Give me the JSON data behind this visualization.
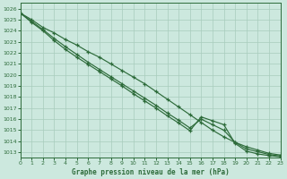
{
  "title": "Graphe pression niveau de la mer (hPa)",
  "bg_color": "#cce8de",
  "grid_color": "#a8ccbc",
  "line_color": "#2d6b3a",
  "xlim": [
    0,
    23
  ],
  "ylim": [
    1012.5,
    1026.5
  ],
  "yticks": [
    1013,
    1014,
    1015,
    1016,
    1017,
    1018,
    1019,
    1020,
    1021,
    1022,
    1023,
    1024,
    1025,
    1026
  ],
  "xticks": [
    0,
    1,
    2,
    3,
    4,
    5,
    6,
    7,
    8,
    9,
    10,
    11,
    12,
    13,
    14,
    15,
    16,
    17,
    18,
    19,
    20,
    21,
    22,
    23
  ],
  "line1_y": [
    1025.6,
    1025.0,
    1024.3,
    1023.8,
    1023.2,
    1022.7,
    1022.1,
    1021.6,
    1021.0,
    1020.4,
    1019.8,
    1019.2,
    1018.5,
    1017.8,
    1017.1,
    1016.4,
    1015.7,
    1015.0,
    1014.4,
    1013.9,
    1013.5,
    1013.2,
    1012.9,
    1012.75
  ],
  "line2_y": [
    1025.6,
    1024.85,
    1024.1,
    1023.3,
    1022.55,
    1021.85,
    1021.15,
    1020.5,
    1019.85,
    1019.2,
    1018.55,
    1017.9,
    1017.25,
    1016.55,
    1015.9,
    1015.2,
    1016.0,
    1015.5,
    1015.0,
    1013.9,
    1013.3,
    1013.05,
    1012.8,
    1012.65
  ],
  "line3_y": [
    1025.6,
    1024.75,
    1024.0,
    1023.1,
    1022.3,
    1021.6,
    1020.95,
    1020.3,
    1019.65,
    1019.0,
    1018.3,
    1017.65,
    1017.0,
    1016.3,
    1015.65,
    1014.95,
    1016.2,
    1015.85,
    1015.5,
    1013.8,
    1013.1,
    1012.85,
    1012.7,
    1012.6
  ]
}
